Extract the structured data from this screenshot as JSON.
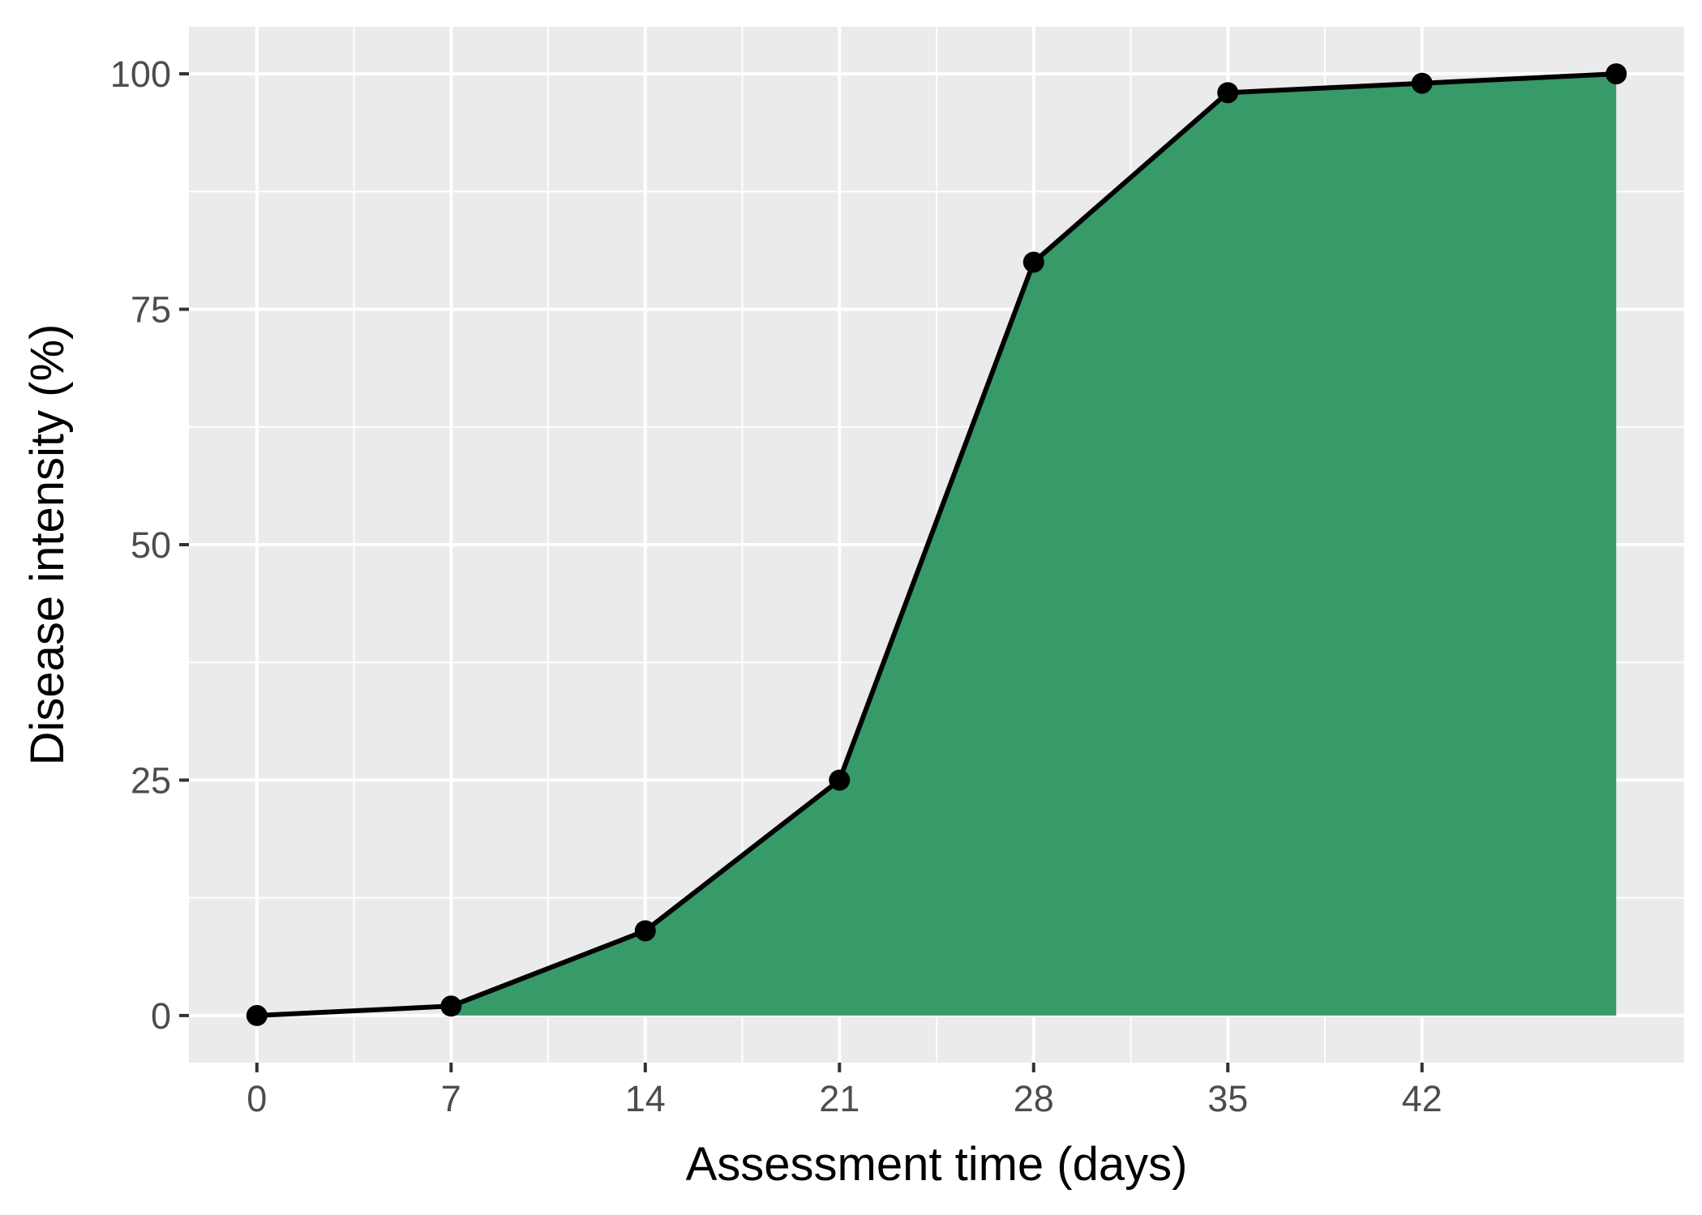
{
  "chart_data": {
    "type": "area",
    "title": "",
    "xlabel": "Assessment time (days)",
    "ylabel": "Disease intensity (%)",
    "x": [
      0,
      7,
      14,
      21,
      28,
      35,
      42,
      49
    ],
    "series": [
      {
        "values": [
          0,
          1,
          9,
          25,
          80,
          98,
          99,
          100
        ]
      }
    ],
    "x_ticks": [
      0,
      7,
      14,
      21,
      28,
      35,
      42
    ],
    "x_tick_labels": [
      "0",
      "7",
      "14",
      "21",
      "28",
      "35",
      "42"
    ],
    "y_ticks": [
      0,
      25,
      50,
      75,
      100
    ],
    "y_tick_labels": [
      "0",
      "25",
      "50",
      "75",
      "100"
    ],
    "xlim": [
      -2.45,
      51.45
    ],
    "ylim": [
      -5,
      105
    ],
    "grid": true,
    "legend": "none",
    "fill_start_x": 7,
    "colors": {
      "fill": "#369a69",
      "line": "#000000",
      "points": "#000000",
      "panel_background": "#ebebeb",
      "grid": "#ffffff"
    }
  }
}
